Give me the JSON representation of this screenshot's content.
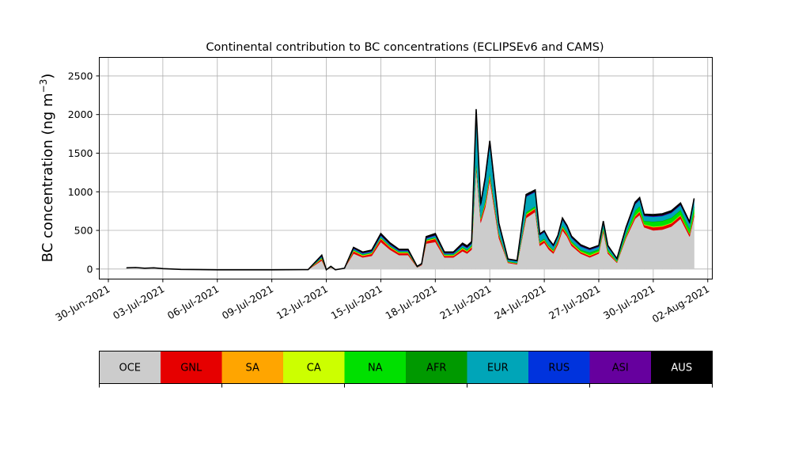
{
  "chart_data": {
    "type": "area",
    "stacked": true,
    "title": "Continental contribution to BC concentrations (ECLIPSEv6 and CAMS)",
    "xlabel": "",
    "ylabel": "BC concentration (ng m",
    "ylabel_sup": "−3",
    "ylabel_close": ")",
    "ylim": [
      -130,
      2740
    ],
    "xlim": [
      "2021-06-29 12:00",
      "2021-08-02 06:00"
    ],
    "grid": true,
    "y_ticks": [
      0,
      500,
      1000,
      1500,
      2000,
      2500
    ],
    "x_ticks": [
      "30-Jun-2021",
      "03-Jul-2021",
      "06-Jul-2021",
      "09-Jul-2021",
      "12-Jul-2021",
      "15-Jul-2021",
      "18-Jul-2021",
      "21-Jul-2021",
      "24-Jul-2021",
      "27-Jul-2021",
      "30-Jul-2021",
      "02-Aug-2021"
    ],
    "x_tick_dates": [
      "2021-06-30",
      "2021-07-03",
      "2021-07-06",
      "2021-07-09",
      "2021-07-12",
      "2021-07-15",
      "2021-07-18",
      "2021-07-21",
      "2021-07-24",
      "2021-07-27",
      "2021-07-30",
      "2021-08-02"
    ],
    "legend_placement": "bottom colorbar",
    "series_names": [
      "OCE",
      "GNL",
      "SA",
      "CA",
      "NA",
      "AFR",
      "EUR",
      "RUS",
      "ASI",
      "AUS"
    ],
    "series_colors": [
      "#cccccc",
      "#e60000",
      "#ffa500",
      "#ccff00",
      "#00e000",
      "#009900",
      "#00a5b8",
      "#0033dd",
      "#66009e",
      "#000000"
    ],
    "x": [
      "2021-07-01",
      "2021-07-01 12:00",
      "2021-07-02",
      "2021-07-02 12:00",
      "2021-07-03",
      "2021-07-04",
      "2021-07-06",
      "2021-07-09",
      "2021-07-11",
      "2021-07-11 18:00",
      "2021-07-12",
      "2021-07-12 06:00",
      "2021-07-12 12:00",
      "2021-07-13",
      "2021-07-13 12:00",
      "2021-07-14",
      "2021-07-14 12:00",
      "2021-07-15",
      "2021-07-15 12:00",
      "2021-07-16",
      "2021-07-16 12:00",
      "2021-07-17",
      "2021-07-17 06:00",
      "2021-07-17 12:00",
      "2021-07-18",
      "2021-07-18 12:00",
      "2021-07-19",
      "2021-07-19 12:00",
      "2021-07-19 18:00",
      "2021-07-20",
      "2021-07-20 06:00",
      "2021-07-20 12:00",
      "2021-07-20 18:00",
      "2021-07-21",
      "2021-07-21 12:00",
      "2021-07-22",
      "2021-07-22 12:00",
      "2021-07-23",
      "2021-07-23 12:00",
      "2021-07-23 18:00",
      "2021-07-24",
      "2021-07-24 06:00",
      "2021-07-24 12:00",
      "2021-07-24 18:00",
      "2021-07-25",
      "2021-07-25 06:00",
      "2021-07-25 12:00",
      "2021-07-26",
      "2021-07-26 12:00",
      "2021-07-27",
      "2021-07-27 06:00",
      "2021-07-27 12:00",
      "2021-07-28",
      "2021-07-28 12:00",
      "2021-07-29",
      "2021-07-29 06:00",
      "2021-07-29 12:00",
      "2021-07-30",
      "2021-07-30 12:00",
      "2021-07-31",
      "2021-07-31 12:00",
      "2021-08-01",
      "2021-08-01 06:00"
    ],
    "series": [
      {
        "name": "OCE",
        "values": [
          15,
          20,
          10,
          15,
          5,
          -5,
          -10,
          -10,
          -8,
          110,
          -10,
          20,
          -10,
          10,
          200,
          150,
          170,
          350,
          250,
          180,
          180,
          20,
          50,
          330,
          350,
          150,
          150,
          230,
          200,
          250,
          1300,
          600,
          800,
          1150,
          400,
          80,
          60,
          660,
          740,
          300,
          340,
          250,
          200,
          320,
          500,
          420,
          300,
          200,
          150,
          200,
          480,
          200,
          80,
          400,
          650,
          700,
          540,
          500,
          510,
          550,
          650,
          420,
          680
        ]
      },
      {
        "name": "GNL",
        "values": [
          0,
          0,
          0,
          0,
          0,
          0,
          0,
          0,
          0,
          20,
          0,
          5,
          0,
          0,
          30,
          20,
          25,
          40,
          30,
          25,
          25,
          5,
          10,
          30,
          40,
          20,
          20,
          30,
          25,
          30,
          50,
          40,
          40,
          50,
          40,
          10,
          10,
          40,
          40,
          30,
          30,
          30,
          25,
          30,
          35,
          30,
          30,
          20,
          20,
          20,
          30,
          20,
          10,
          20,
          30,
          40,
          30,
          40,
          40,
          40,
          40,
          30,
          40
        ]
      },
      {
        "name": "SA",
        "values": [
          0,
          0,
          0,
          0,
          0,
          0,
          0,
          0,
          0,
          5,
          0,
          0,
          0,
          0,
          5,
          5,
          5,
          5,
          5,
          5,
          5,
          0,
          0,
          5,
          5,
          5,
          5,
          5,
          5,
          5,
          10,
          5,
          10,
          10,
          5,
          2,
          2,
          5,
          5,
          5,
          5,
          5,
          5,
          5,
          5,
          5,
          5,
          5,
          5,
          5,
          5,
          5,
          2,
          5,
          5,
          5,
          5,
          5,
          5,
          5,
          5,
          5,
          5
        ]
      },
      {
        "name": "CA",
        "values": [
          0,
          0,
          0,
          0,
          0,
          0,
          0,
          0,
          0,
          5,
          0,
          0,
          0,
          0,
          5,
          5,
          5,
          5,
          5,
          5,
          5,
          0,
          0,
          5,
          5,
          5,
          5,
          5,
          5,
          5,
          10,
          5,
          10,
          10,
          5,
          2,
          2,
          5,
          5,
          5,
          5,
          5,
          5,
          5,
          5,
          5,
          5,
          5,
          5,
          5,
          5,
          5,
          2,
          5,
          5,
          5,
          5,
          5,
          5,
          5,
          5,
          5,
          5
        ]
      },
      {
        "name": "NA",
        "values": [
          0,
          0,
          0,
          0,
          0,
          0,
          0,
          0,
          0,
          5,
          0,
          0,
          0,
          0,
          5,
          5,
          5,
          5,
          5,
          5,
          5,
          0,
          0,
          5,
          5,
          5,
          5,
          10,
          10,
          10,
          20,
          10,
          20,
          20,
          10,
          5,
          5,
          20,
          20,
          10,
          10,
          10,
          10,
          10,
          15,
          15,
          15,
          15,
          30,
          20,
          20,
          20,
          10,
          30,
          60,
          60,
          40,
          60,
          60,
          60,
          60,
          60,
          70
        ]
      },
      {
        "name": "AFR",
        "values": [
          0,
          0,
          0,
          0,
          0,
          0,
          0,
          0,
          0,
          5,
          0,
          0,
          0,
          0,
          5,
          5,
          5,
          5,
          5,
          5,
          5,
          0,
          0,
          5,
          5,
          5,
          5,
          5,
          5,
          5,
          10,
          5,
          10,
          10,
          5,
          2,
          2,
          5,
          5,
          5,
          5,
          5,
          5,
          5,
          5,
          5,
          5,
          5,
          5,
          5,
          5,
          5,
          2,
          5,
          5,
          5,
          5,
          5,
          5,
          5,
          5,
          5,
          5
        ]
      },
      {
        "name": "EUR",
        "values": [
          0,
          0,
          0,
          0,
          0,
          0,
          0,
          0,
          0,
          10,
          0,
          5,
          0,
          0,
          10,
          10,
          10,
          20,
          15,
          10,
          10,
          5,
          5,
          15,
          20,
          10,
          10,
          20,
          20,
          20,
          600,
          150,
          250,
          350,
          100,
          20,
          20,
          200,
          180,
          80,
          80,
          60,
          40,
          40,
          70,
          60,
          40,
          40,
          30,
          30,
          50,
          30,
          20,
          50,
          80,
          80,
          60,
          60,
          60,
          60,
          60,
          60,
          80
        ]
      },
      {
        "name": "RUS",
        "values": [
          0,
          0,
          0,
          0,
          0,
          0,
          0,
          0,
          0,
          5,
          0,
          0,
          0,
          0,
          5,
          5,
          5,
          5,
          5,
          5,
          5,
          0,
          0,
          5,
          5,
          5,
          5,
          5,
          5,
          5,
          10,
          5,
          10,
          10,
          5,
          2,
          2,
          5,
          5,
          5,
          5,
          5,
          5,
          5,
          5,
          5,
          5,
          5,
          5,
          5,
          5,
          5,
          2,
          5,
          5,
          5,
          5,
          5,
          5,
          5,
          5,
          5,
          5
        ]
      },
      {
        "name": "ASI",
        "values": [
          0,
          0,
          0,
          0,
          0,
          0,
          0,
          0,
          0,
          5,
          0,
          0,
          0,
          0,
          5,
          5,
          5,
          5,
          5,
          5,
          5,
          0,
          0,
          5,
          5,
          5,
          5,
          5,
          5,
          5,
          10,
          5,
          10,
          10,
          5,
          2,
          2,
          5,
          5,
          5,
          5,
          5,
          5,
          5,
          5,
          5,
          5,
          5,
          5,
          5,
          5,
          5,
          2,
          5,
          5,
          5,
          5,
          5,
          5,
          5,
          5,
          5,
          5
        ]
      },
      {
        "name": "AUS",
        "values": [
          0,
          0,
          0,
          0,
          0,
          0,
          0,
          0,
          0,
          10,
          0,
          5,
          0,
          0,
          10,
          10,
          10,
          20,
          15,
          10,
          10,
          5,
          5,
          15,
          20,
          10,
          10,
          20,
          20,
          20,
          50,
          20,
          30,
          40,
          20,
          5,
          5,
          20,
          20,
          10,
          10,
          10,
          10,
          10,
          15,
          15,
          15,
          15,
          10,
          10,
          15,
          10,
          5,
          15,
          20,
          20,
          15,
          20,
          20,
          20,
          20,
          15,
          20
        ]
      }
    ]
  }
}
